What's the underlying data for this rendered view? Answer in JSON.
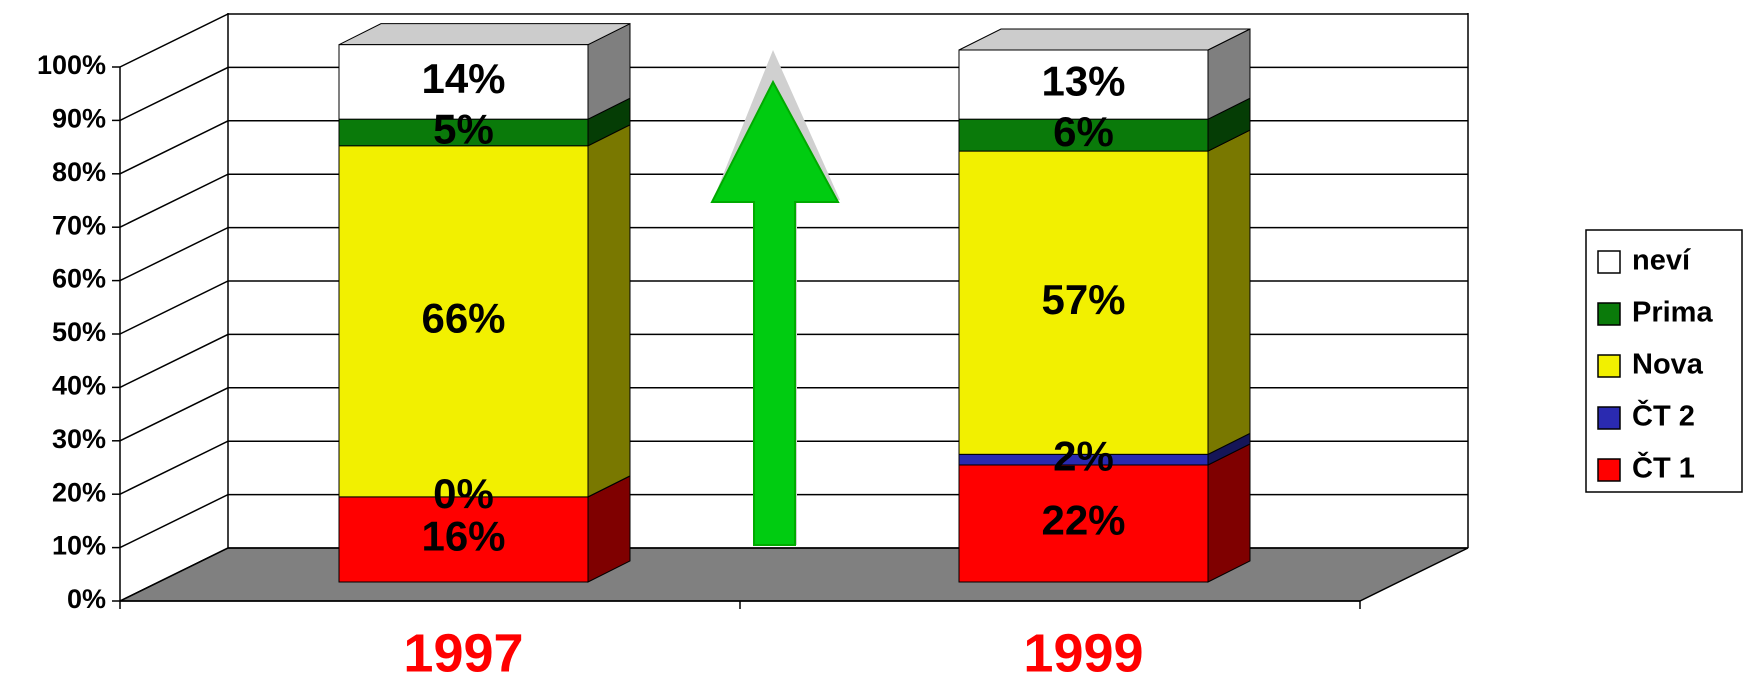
{
  "chart_data": {
    "type": "bar",
    "stacked": true,
    "categories": [
      "1997",
      "1999"
    ],
    "series": [
      {
        "name": "ČT 1",
        "color": "#ff0000",
        "values": [
          16,
          22
        ],
        "value_labels": [
          "16%",
          "22%"
        ]
      },
      {
        "name": "ČT 2",
        "color": "#2a2ab0",
        "values": [
          0,
          2
        ],
        "value_labels": [
          "0%",
          "2%"
        ]
      },
      {
        "name": "Nova",
        "color": "#f2f000",
        "values": [
          66,
          57
        ],
        "value_labels": [
          "66%",
          "57%"
        ]
      },
      {
        "name": "Prima",
        "color": "#0a7a0a",
        "values": [
          5,
          6
        ],
        "value_labels": [
          "5%",
          "6%"
        ]
      },
      {
        "name": "neví",
        "color": "#ffffff",
        "values": [
          14,
          13
        ],
        "value_labels": [
          "14%",
          "13%"
        ]
      }
    ],
    "ylim": [
      0,
      100
    ],
    "yticks": [
      {
        "value": 0,
        "label": "0%"
      },
      {
        "value": 10,
        "label": "10%"
      },
      {
        "value": 20,
        "label": "20%"
      },
      {
        "value": 30,
        "label": "30%"
      },
      {
        "value": 40,
        "label": "40%"
      },
      {
        "value": 50,
        "label": "50%"
      },
      {
        "value": 60,
        "label": "60%"
      },
      {
        "value": 70,
        "label": "70%"
      },
      {
        "value": 80,
        "label": "80%"
      },
      {
        "value": 90,
        "label": "90%"
      },
      {
        "value": 100,
        "label": "100%"
      }
    ],
    "grid": true,
    "legend": "right"
  }
}
